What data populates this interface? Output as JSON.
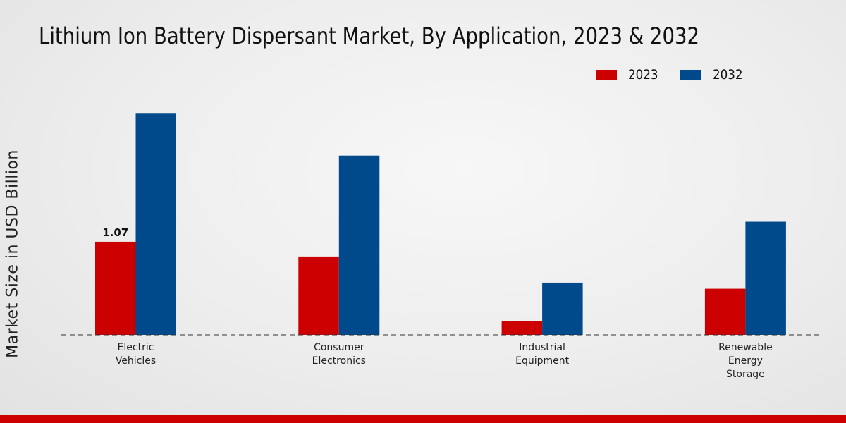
{
  "chart_data": {
    "type": "bar",
    "title": "Lithium Ion Battery Dispersant Market, By Application, 2023 & 2032",
    "xlabel": "",
    "ylabel": "Market Size in USD Billion",
    "categories": [
      "Electric Vehicles",
      "Consumer Electronics",
      "Industrial Equipment",
      "Renewable Energy Storage"
    ],
    "category_lines": [
      [
        "Electric",
        "Vehicles"
      ],
      [
        "Consumer",
        "Electronics"
      ],
      [
        "Industrial",
        "Equipment"
      ],
      [
        "Renewable",
        "Energy",
        "Storage"
      ]
    ],
    "series": [
      {
        "name": "2023",
        "color": "#cc0000",
        "values": [
          1.07,
          0.9,
          0.16,
          0.53
        ]
      },
      {
        "name": "2032",
        "color": "#004a8c",
        "values": [
          2.55,
          2.06,
          0.6,
          1.3
        ]
      }
    ],
    "data_labels": [
      {
        "series": 0,
        "index": 0,
        "text": "1.07"
      }
    ],
    "ylim": [
      0,
      3.2
    ],
    "legend_position": "top-right",
    "grid": false
  }
}
